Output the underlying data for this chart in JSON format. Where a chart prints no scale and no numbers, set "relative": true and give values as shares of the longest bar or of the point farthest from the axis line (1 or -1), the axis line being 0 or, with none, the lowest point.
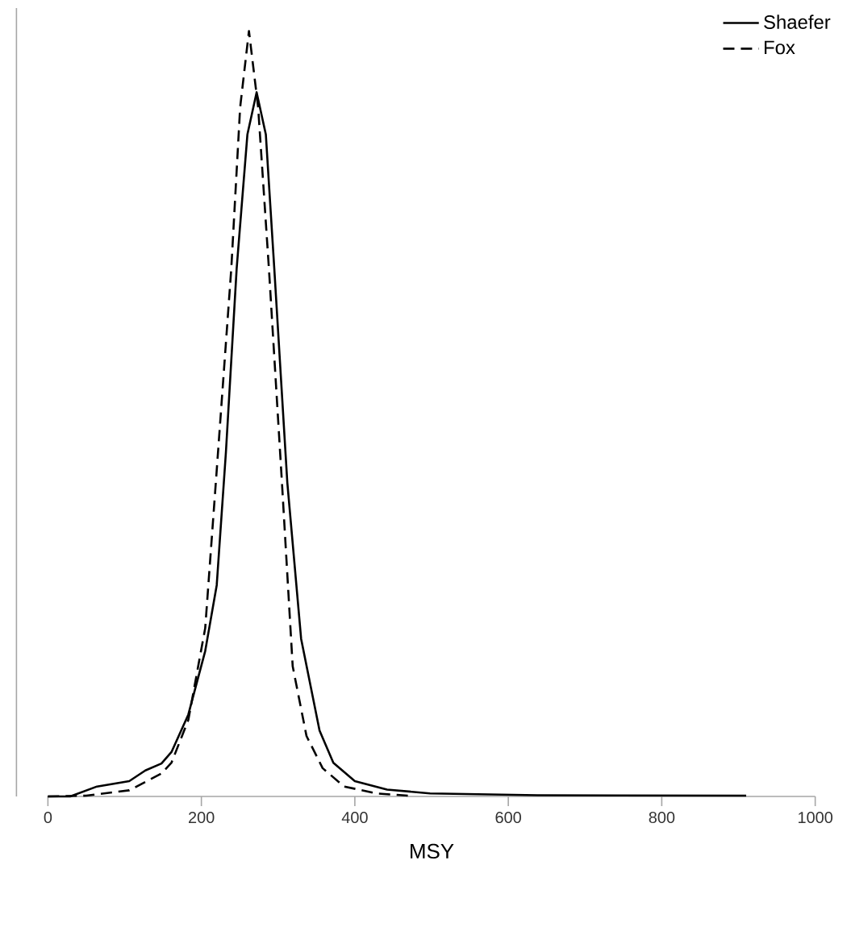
{
  "chart_data": {
    "type": "line",
    "relative": true,
    "xlabel": "MSY",
    "xlim": [
      0,
      1000
    ],
    "xticks": [
      0,
      200,
      400,
      600,
      800,
      1000
    ],
    "legend": "top right",
    "marker": "none",
    "series": [
      {
        "name": "Shaefer",
        "color": "#000000",
        "line_style": "solid",
        "x": [
          0,
          29,
          64,
          106,
          127,
          148,
          161,
          183,
          205,
          220,
          232,
          246,
          260,
          272,
          284,
          295,
          312,
          330,
          354,
          372,
          400,
          442,
          498,
          638,
          910
        ],
        "values": [
          0,
          0,
          0.013,
          0.02,
          0.034,
          0.043,
          0.058,
          0.107,
          0.19,
          0.276,
          0.45,
          0.69,
          0.865,
          0.92,
          0.865,
          0.69,
          0.41,
          0.206,
          0.086,
          0.044,
          0.02,
          0.009,
          0.004,
          0.0015,
          0.001
        ]
      },
      {
        "name": "Fox",
        "color": "#000000",
        "line_style": "dashed",
        "x": [
          0,
          50,
          106,
          148,
          161,
          183,
          205,
          221,
          239,
          250.5,
          262,
          274,
          288,
          305,
          319,
          337,
          358,
          386,
          428,
          470
        ],
        "values": [
          0,
          0.001,
          0.008,
          0.03,
          0.044,
          0.1,
          0.22,
          0.44,
          0.69,
          0.9,
          1,
          0.9,
          0.69,
          0.41,
          0.17,
          0.079,
          0.037,
          0.013,
          0.004,
          0.001
        ]
      }
    ]
  }
}
